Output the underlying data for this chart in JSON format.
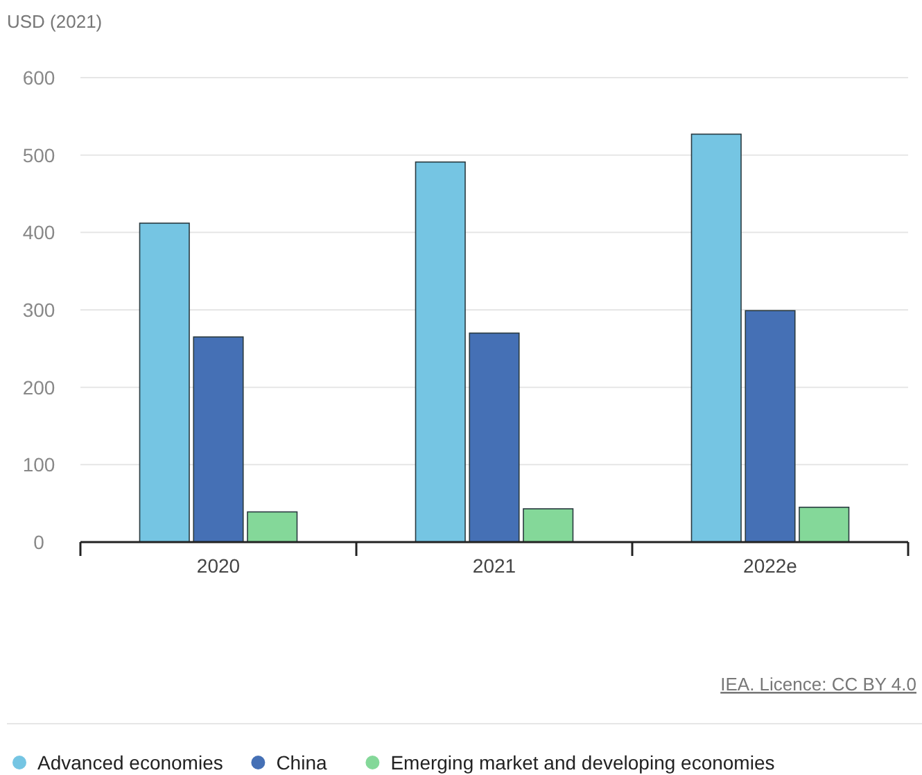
{
  "chart_data": {
    "type": "bar",
    "ylabel": "USD (2021)",
    "categories": [
      "2020",
      "2021",
      "2022e"
    ],
    "series": [
      {
        "name": "Advanced economies",
        "color": "#75c5e3",
        "values": [
          412,
          491,
          527
        ]
      },
      {
        "name": "China",
        "color": "#4570b5",
        "values": [
          265,
          270,
          299
        ]
      },
      {
        "name": "Emerging market and developing economies",
        "color": "#84d899",
        "values": [
          39,
          43,
          45
        ]
      }
    ],
    "ylim": [
      0,
      600
    ],
    "yticks": [
      0,
      100,
      200,
      300,
      400,
      500,
      600
    ],
    "grid": "y",
    "legend": "bottom",
    "annotations": [
      "IEA. Licence: CC BY 4.0"
    ]
  }
}
